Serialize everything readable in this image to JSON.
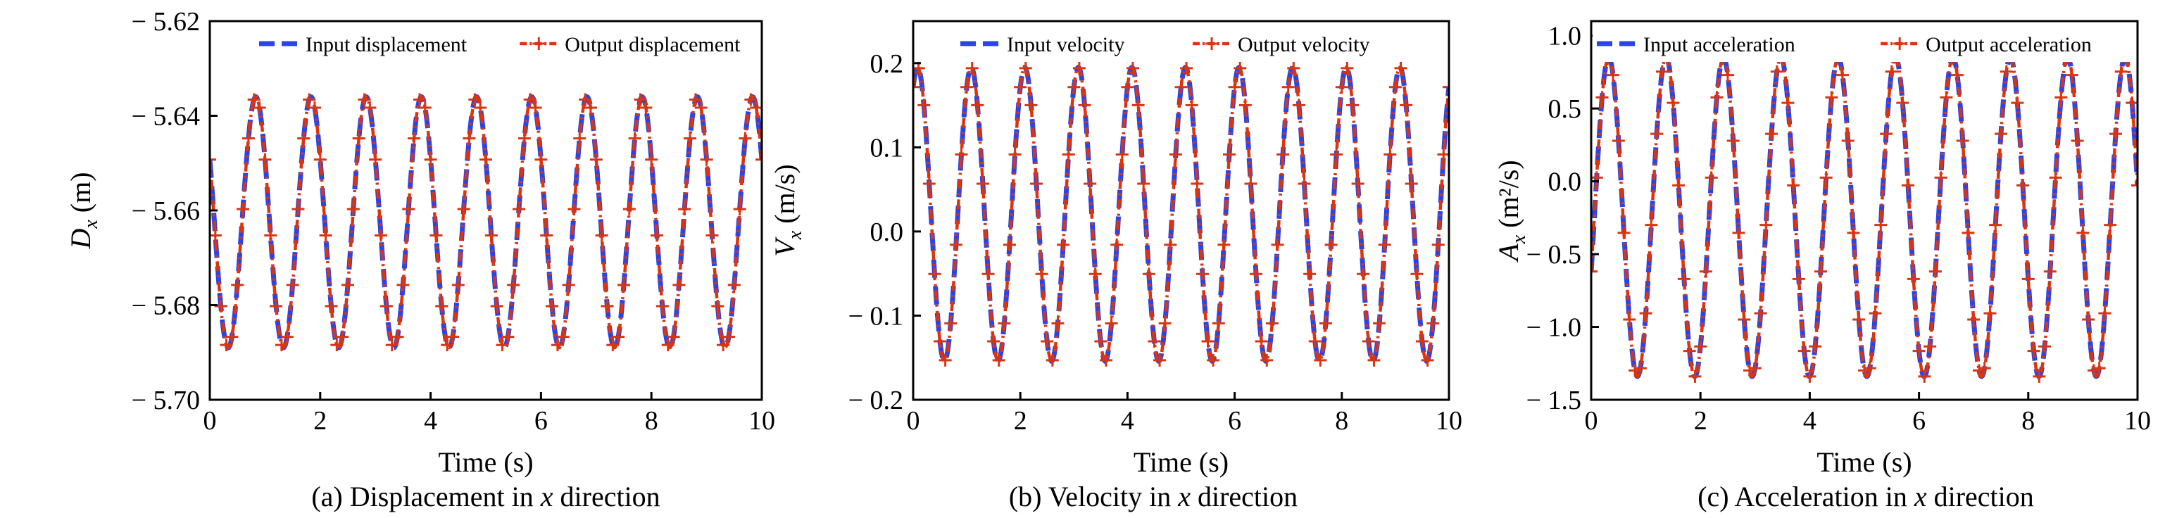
{
  "colors": {
    "input": "#2a44e8",
    "output": "#d93510",
    "axis": "#000000"
  },
  "chart_data": [
    {
      "type": "line",
      "caption": "(a) Displacement in x direction",
      "xlabel": "Time (s)",
      "ylabel": {
        "symbol": "D",
        "sub": "x",
        "unit": "(m)"
      },
      "xlim": [
        0,
        10
      ],
      "ylim": [
        -5.7,
        -5.62
      ],
      "xticks": [
        0,
        2,
        4,
        6,
        8,
        10
      ],
      "yticks": [
        -5.7,
        -5.68,
        -5.66,
        -5.64,
        -5.62
      ],
      "ytick_labels": [
        "− 5.70",
        "− 5.68",
        "− 5.66",
        "− 5.64",
        "− 5.62"
      ],
      "xtick_labels": [
        "0",
        "2",
        "4",
        "6",
        "8",
        "10"
      ],
      "legend": [
        "Input displacement",
        "Output displacement"
      ],
      "signal": {
        "mean": -5.6625,
        "amplitude": 0.0265,
        "period_s": 1.0,
        "phase_deg": 150,
        "t_start": 0,
        "t_end": 10
      },
      "series": [
        {
          "name": "Input displacement",
          "style": "dashed"
        },
        {
          "name": "Output displacement",
          "style": "dashdot-plus"
        }
      ]
    },
    {
      "type": "line",
      "caption": "(b) Velocity in x direction",
      "xlabel": "Time (s)",
      "ylabel": {
        "symbol": "V",
        "sub": "x",
        "unit": "(m/s)"
      },
      "xlim": [
        0,
        10
      ],
      "ylim": [
        -0.2,
        0.25
      ],
      "xticks": [
        0,
        2,
        4,
        6,
        8,
        10
      ],
      "yticks": [
        -0.2,
        -0.1,
        0.0,
        0.1,
        0.2
      ],
      "ytick_labels": [
        "− 0.2",
        "− 0.1",
        "0.0",
        "0.1",
        "0.2"
      ],
      "xtick_labels": [
        "0",
        "2",
        "4",
        "6",
        "8",
        "10"
      ],
      "legend": [
        "Input velocity",
        "Output velocity"
      ],
      "signal": {
        "mean": 0.0205,
        "amplitude": 0.1745,
        "period_s": 1.0,
        "phase_deg": 60,
        "t_start": 0,
        "t_end": 10
      },
      "series": [
        {
          "name": "Input velocity",
          "style": "dashed"
        },
        {
          "name": "Output velocity",
          "style": "dashdot-plus"
        }
      ]
    },
    {
      "type": "line",
      "caption": "(c) Acceleration in x direction",
      "xlabel": "Time (s)",
      "ylabel": {
        "symbol": "A",
        "sub": "x",
        "unit": "(m²/s)"
      },
      "xlim": [
        0,
        10
      ],
      "ylim": [
        -1.5,
        1.1
      ],
      "xticks": [
        0,
        2,
        4,
        6,
        8,
        10
      ],
      "yticks": [
        -1.5,
        -1.0,
        -0.5,
        0.0,
        0.5,
        1.0
      ],
      "ytick_labels": [
        "− 1.5",
        "− 1.0",
        "− 0.5",
        "0.0",
        "0.5",
        "1.0"
      ],
      "xtick_labels": [
        "0",
        "2",
        "4",
        "6",
        "8",
        "10"
      ],
      "legend": [
        "Input acceleration",
        "Output acceleration"
      ],
      "signal": {
        "mean": -0.245,
        "amplitude": 1.095,
        "period_s": 1.05,
        "phase_deg": -20,
        "t_start": 0,
        "t_end": 10
      },
      "series": [
        {
          "name": "Input acceleration",
          "style": "dashed"
        },
        {
          "name": "Output acceleration",
          "style": "dashdot-plus"
        }
      ]
    }
  ]
}
